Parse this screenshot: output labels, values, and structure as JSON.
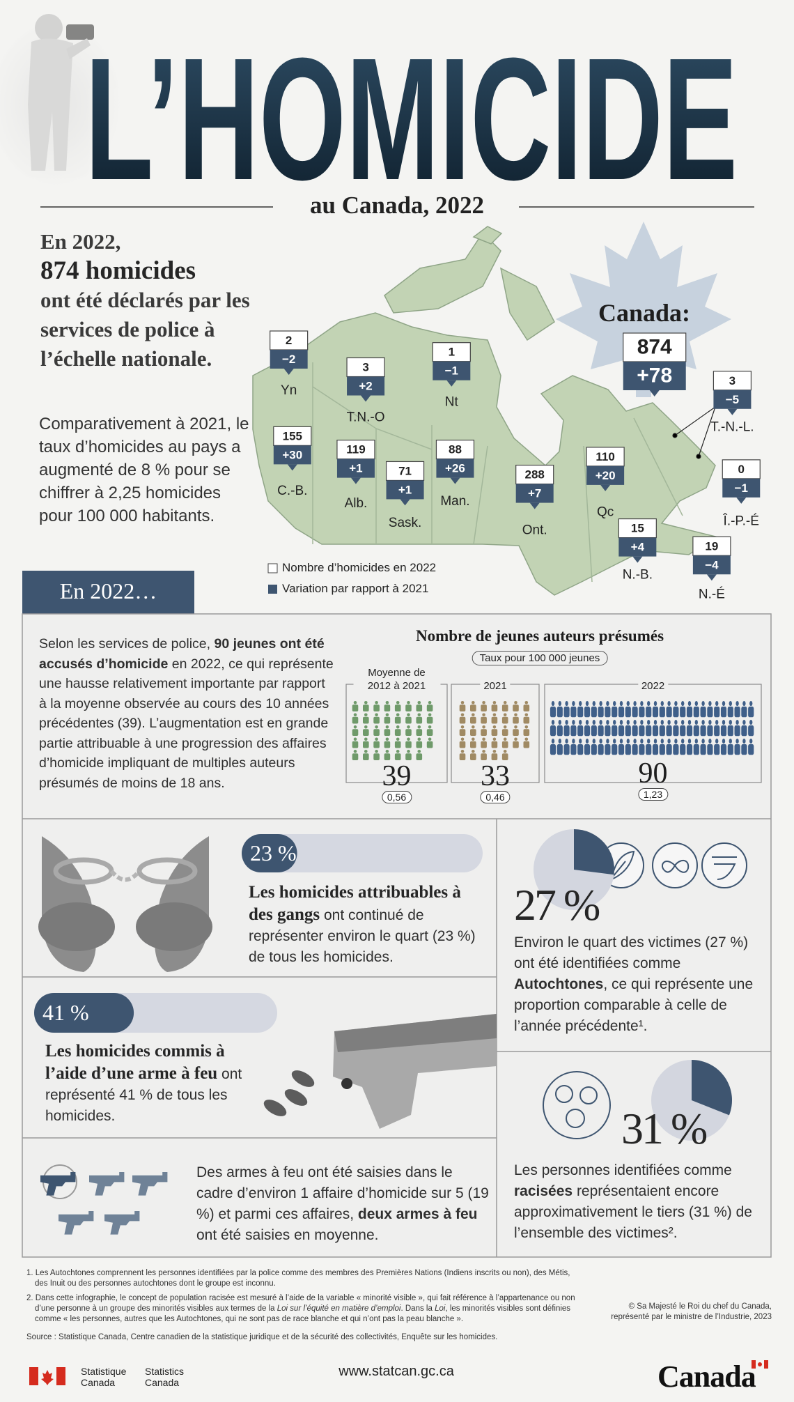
{
  "header": {
    "title": "L’HOMICIDE",
    "subtitle": "au Canada, 2022"
  },
  "intro": {
    "lead": "En 2022,",
    "headline": "874 homicides",
    "statement": "ont été déclarés par les services de police à l’échelle nationale.",
    "comparison": "Comparativement à 2021, le taux d’homicides au pays a augmenté de 8 % pour se chiffrer à 2,25 homicides pour 100 000 habitants."
  },
  "map": {
    "national": {
      "label": "Canada:",
      "count": 874,
      "change": "+78"
    },
    "regions": [
      {
        "name": "Yn",
        "count": 2,
        "change": "−2"
      },
      {
        "name": "T.N.-O",
        "count": 3,
        "change": "+2"
      },
      {
        "name": "Nt",
        "count": 1,
        "change": "−1"
      },
      {
        "name": "C.-B.",
        "count": 155,
        "change": "+30"
      },
      {
        "name": "Alb.",
        "count": 119,
        "change": "+1"
      },
      {
        "name": "Sask.",
        "count": 71,
        "change": "+1"
      },
      {
        "name": "Man.",
        "count": 88,
        "change": "+26"
      },
      {
        "name": "Ont.",
        "count": 288,
        "change": "+7"
      },
      {
        "name": "Qc",
        "count": 110,
        "change": "+20"
      },
      {
        "name": "T.-N.-L.",
        "count": 3,
        "change": "−5"
      },
      {
        "name": "Î.-P.-É",
        "count": 0,
        "change": "−1"
      },
      {
        "name": "N.-B.",
        "count": 15,
        "change": "+4"
      },
      {
        "name": "N.-É",
        "count": 19,
        "change": "−4"
      }
    ],
    "legend": [
      "Nombre d’homicides en 2022",
      "Variation par rapport à 2021"
    ]
  },
  "section": {
    "title": "En 2022…"
  },
  "youth": {
    "text": [
      "Selon les services de police,",
      "90 jeunes ont été accusés d’homicide",
      "en 2022, ce qui représente une hausse relativement importante par rapport à la moyenne observée au cours des 10 années précédentes (39). L’augmentation est en grande partie attribuable à une progression des affaires d’homicide impliquant de multiples auteurs présumés de moins de 18 ans."
    ],
    "chart_title": "Nombre de jeunes auteurs présumés",
    "chart_subtitle": "Taux pour 100 000 jeunes",
    "groups": [
      {
        "label": "Moyenne de 2012 à 2021",
        "count": 39,
        "rate": "0,56",
        "color": "#6f9a6a"
      },
      {
        "label": "2021",
        "count": 33,
        "rate": "0,46",
        "color": "#a08a63"
      },
      {
        "label": "2022",
        "count": 90,
        "rate": "1,23",
        "color": "#3f5f89"
      }
    ]
  },
  "gangs": {
    "percent": {
      "value": 23,
      "label": "23 %"
    },
    "text": [
      "Les homicides attribuables à des gangs",
      "ont continué de représenter environ le quart (23 %) de tous les homicides."
    ]
  },
  "indigenous": {
    "percent": {
      "value": 27,
      "label": "27 %"
    },
    "text": [
      "Environ le quart des victimes (27 %) ont été identifiées comme",
      "Autochtones",
      ", ce qui représente une proportion comparable à celle de l’année précédente¹."
    ]
  },
  "firearms": {
    "percent": {
      "value": 41,
      "label": "41 %"
    },
    "text": [
      "Les homicides commis à l’aide d’une arme à feu",
      "ont représenté 41 % de tous les homicides."
    ]
  },
  "racialized": {
    "percent": {
      "value": 31,
      "label": "31 %"
    },
    "text": [
      "Les personnes identifiées comme",
      "racisées",
      "représentaient encore approximativement le tiers (31 %) de l’ensemble des victimes²."
    ]
  },
  "seized": {
    "text": [
      "Des armes à feu ont été saisies dans le cadre d’environ 1 affaire d’homicide sur 5 (19 %) et parmi ces affaires,",
      "deux armes à feu",
      "ont été saisies en moyenne."
    ]
  },
  "notes": {
    "footnote1": "1. Les Autochtones comprennent les personnes identifiées par la police comme des membres des Premières Nations (Indiens inscrits ou non), des Métis, des Inuit ou des personnes autochtones dont le groupe est inconnu.",
    "footnote2": [
      "2. Dans cette infographie, le concept de population racisée est mesuré à l’aide de la variable « minorité visible », qui fait référence à l’appartenance ou non d’une personne à un groupe des minorités visibles aux termes de la",
      "Loi sur l’équité en matière d’emploi",
      ". Dans la",
      "Loi",
      ", les minorités visibles sont définies comme « les personnes, autres que les Autochtones, qui ne sont pas de race blanche et qui n’ont pas la peau blanche »."
    ],
    "copyright": "© Sa Majesté le Roi du chef du Canada, représenté par le ministre de l’Industrie, 2023",
    "source": "Source : Statistique Canada, Centre canadien de la statistique juridique et de la sécurité des collectivités, Enquête sur les homicides."
  },
  "footer": {
    "agency_fr": "Statistique Canada",
    "agency_en": "Statistics Canada",
    "url": "www.statcan.gc.ca",
    "wordmark": "Canada"
  }
}
